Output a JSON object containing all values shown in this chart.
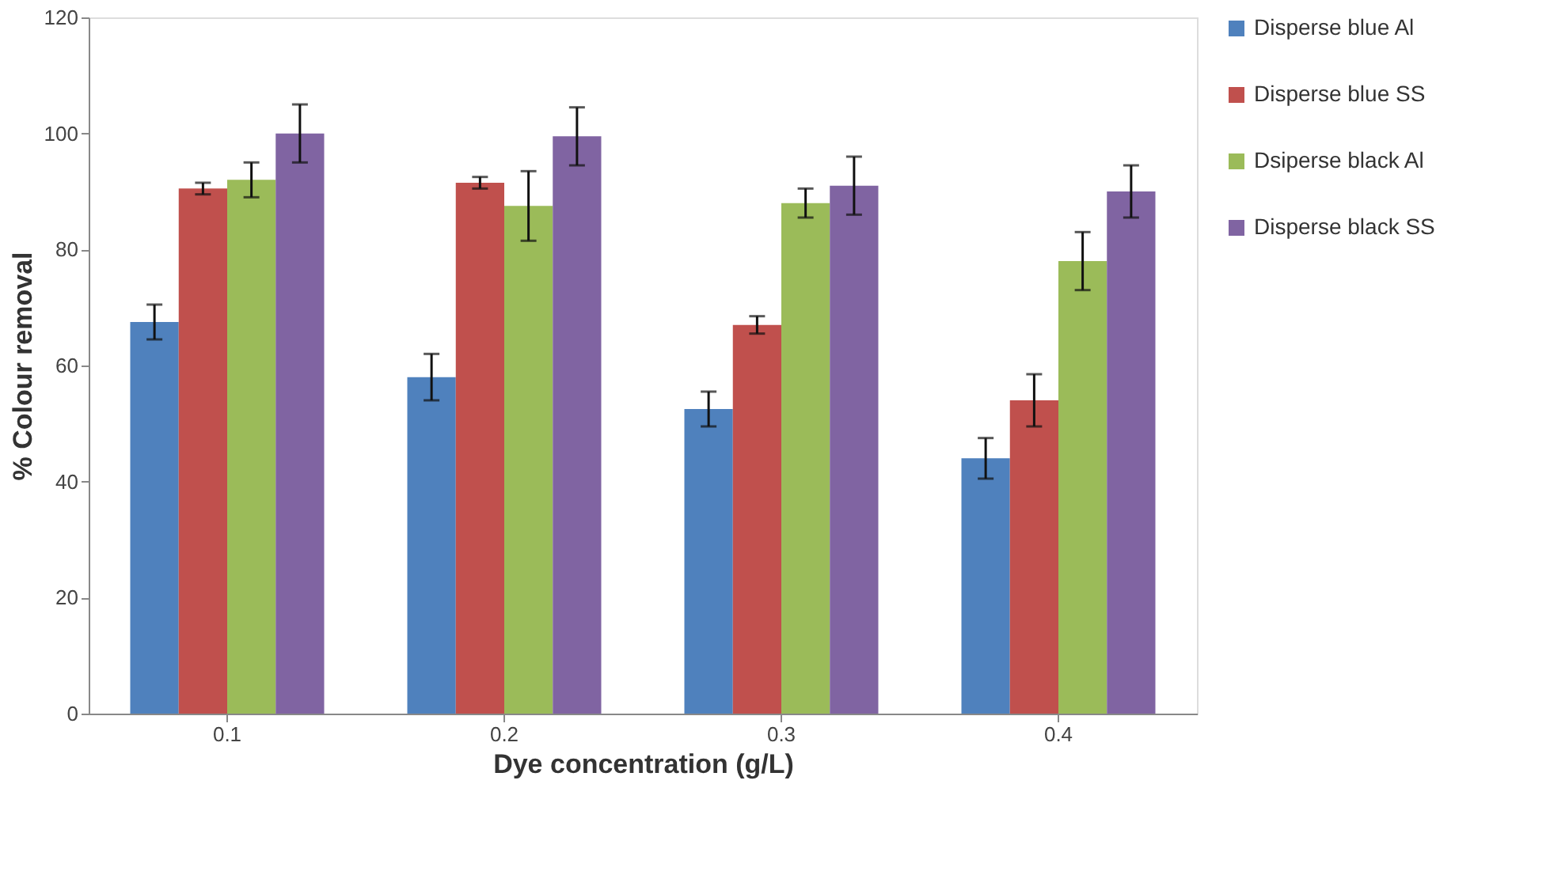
{
  "chart_data": {
    "type": "bar",
    "xlabel": "Dye concentration (g/L)",
    "ylabel": "% Colour removal",
    "categories": [
      "0.1",
      "0.2",
      "0.3",
      "0.4"
    ],
    "series": [
      {
        "name": "Disperse blue Al",
        "color": "#4f81bd",
        "values": [
          67.5,
          58,
          52.5,
          44
        ],
        "errors": [
          3,
          4,
          3,
          3.5
        ]
      },
      {
        "name": "Disperse blue SS",
        "color": "#c0504d",
        "values": [
          90.5,
          91.5,
          67,
          54
        ],
        "errors": [
          1,
          1,
          1.5,
          4.5
        ]
      },
      {
        "name": "Dsiperse black Al",
        "color": "#9bbb59",
        "values": [
          92,
          87.5,
          88,
          78
        ],
        "errors": [
          3,
          6,
          2.5,
          5
        ]
      },
      {
        "name": "Disperse black SS",
        "color": "#8064a2",
        "values": [
          100,
          99.5,
          91,
          90
        ],
        "errors": [
          5,
          5,
          5,
          4.5
        ]
      }
    ],
    "ylim": [
      0,
      120
    ],
    "yticks": [
      0,
      20,
      40,
      60,
      80,
      100,
      120
    ],
    "grid": false,
    "legend": "right"
  }
}
